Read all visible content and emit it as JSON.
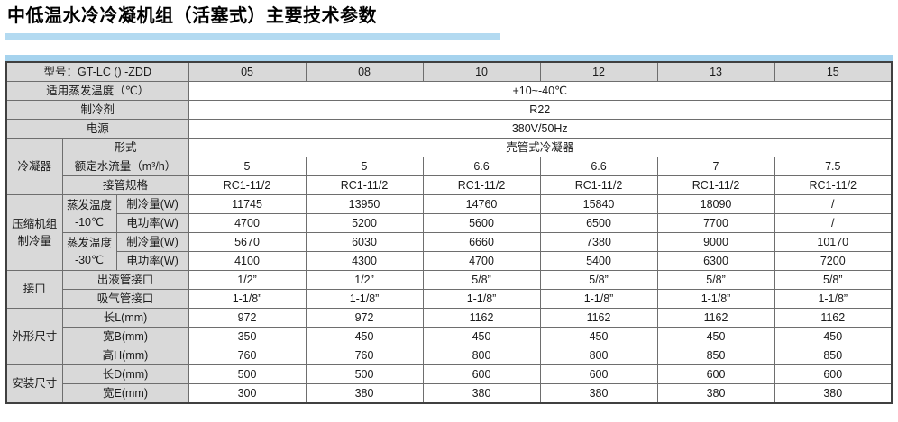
{
  "page": {
    "title": "中低温水冷冷凝机组（活塞式）主要技术参数"
  },
  "colors": {
    "accent_blue_light": "#b3daf1",
    "accent_blue": "#a6d3ee",
    "header_gray": "#d9d9d9"
  },
  "table": {
    "model_row": {
      "label": "型号：GT-LC () -ZDD",
      "columns": [
        "05",
        "08",
        "10",
        "12",
        "13",
        "15"
      ]
    },
    "evap_temp": {
      "label": "适用蒸发温度（℃）",
      "value": "+10~-40℃"
    },
    "refrigerant": {
      "label": "制冷剂",
      "value": "R22"
    },
    "power_supply": {
      "label": "电源",
      "value": "380V/50Hz"
    },
    "condenser": {
      "group": "冷凝器",
      "form": {
        "label": "形式",
        "value": "壳管式冷凝器"
      },
      "water_flow": {
        "label": "额定水流量（m³/h）",
        "values": [
          "5",
          "5",
          "6.6",
          "6.6",
          "7",
          "7.5"
        ]
      },
      "pipe_spec": {
        "label": "接管规格",
        "values": [
          "RC1-11/2",
          "RC1-11/2",
          "RC1-11/2",
          "RC1-11/2",
          "RC1-11/2",
          "RC1-11/2"
        ]
      }
    },
    "compressor": {
      "group": "压缩机组\n制冷量",
      "minus10": {
        "temp": "蒸发温度\n-10℃",
        "cooling": {
          "label": "制冷量(W)",
          "values": [
            "11745",
            "13950",
            "14760",
            "15840",
            "18090",
            "/"
          ]
        },
        "power": {
          "label": "电功率(W)",
          "values": [
            "4700",
            "5200",
            "5600",
            "6500",
            "7700",
            "/"
          ]
        }
      },
      "minus30": {
        "temp": "蒸发温度\n-30℃",
        "cooling": {
          "label": "制冷量(W)",
          "values": [
            "5670",
            "6030",
            "6660",
            "7380",
            "9000",
            "10170"
          ]
        },
        "power": {
          "label": "电功率(W)",
          "values": [
            "4100",
            "4300",
            "4700",
            "5400",
            "6300",
            "7200"
          ]
        }
      }
    },
    "ports": {
      "group": "接口",
      "liquid": {
        "label": "出液管接口",
        "values": [
          "1/2”",
          "1/2”",
          "5/8”",
          "5/8”",
          "5/8”",
          "5/8”"
        ]
      },
      "suction": {
        "label": "吸气管接口",
        "values": [
          "1-1/8”",
          "1-1/8”",
          "1-1/8”",
          "1-1/8”",
          "1-1/8”",
          "1-1/8”"
        ]
      }
    },
    "dimensions": {
      "group": "外形尺寸",
      "length": {
        "label": "长L(mm)",
        "values": [
          "972",
          "972",
          "1162",
          "1162",
          "1162",
          "1162"
        ]
      },
      "width": {
        "label": "宽B(mm)",
        "values": [
          "350",
          "450",
          "450",
          "450",
          "450",
          "450"
        ]
      },
      "height": {
        "label": "高H(mm)",
        "values": [
          "760",
          "760",
          "800",
          "800",
          "850",
          "850"
        ]
      }
    },
    "installation": {
      "group": "安装尺寸",
      "length": {
        "label": "长D(mm)",
        "values": [
          "500",
          "500",
          "600",
          "600",
          "600",
          "600"
        ]
      },
      "width": {
        "label": "宽E(mm)",
        "values": [
          "300",
          "380",
          "380",
          "380",
          "380",
          "380"
        ]
      }
    }
  }
}
